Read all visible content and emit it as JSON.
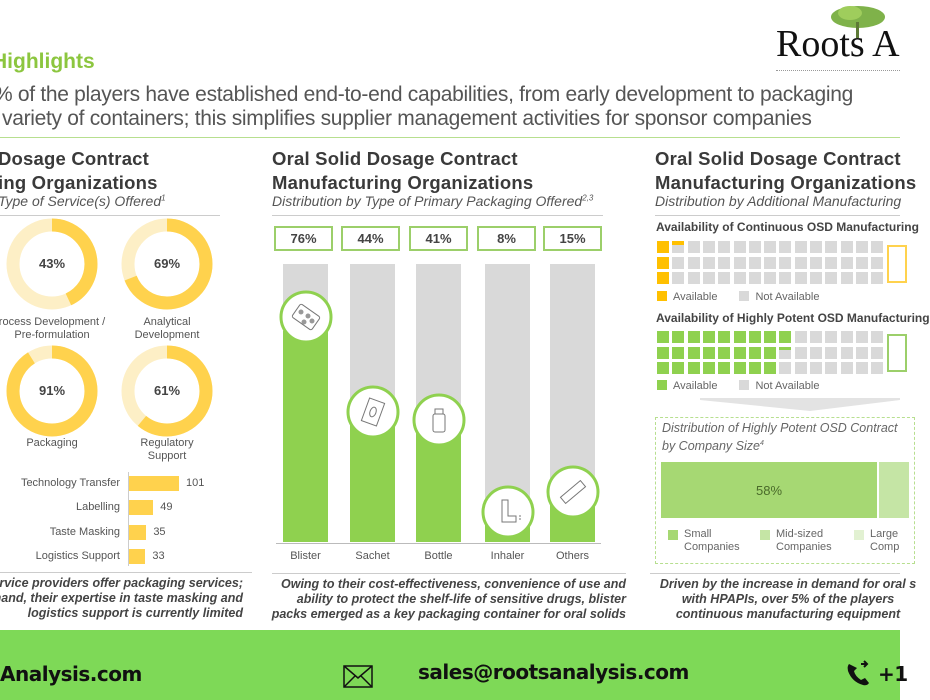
{
  "logo": {
    "text": "Roots A",
    "tree_icon": "tree-icon"
  },
  "header": {
    "title": "Highlights",
    "line1": "% of the players have established end-to-end capabilities, from early development to packaging",
    "line2": "variety of containers; this simplifies supplier management activities for sponsor companies"
  },
  "colors": {
    "green": "#8fd14f",
    "orange": "#ffc000",
    "yellow": "#ffd24d",
    "light_yellow": "#fdefc6",
    "gray": "#d9d9d9",
    "footer": "#7ed957"
  },
  "left": {
    "title1": "Dosage Contract",
    "title2": "ing Organizations",
    "subtitle": "Type of Service(s) Offered",
    "subtitle_sup": "1",
    "donuts": [
      {
        "value": 43,
        "label": "43%",
        "name1": "rocess Development /",
        "name2": "Pre-formulation"
      },
      {
        "value": 69,
        "label": "69%",
        "name1": "Analytical",
        "name2": "Development"
      },
      {
        "value": 91,
        "label": "91%",
        "name1": "Packaging",
        "name2": ""
      },
      {
        "value": 61,
        "label": "61%",
        "name1": "Regulatory",
        "name2": "Support"
      }
    ],
    "bars": [
      {
        "label": "Technology Transfer",
        "value": 101
      },
      {
        "label": "Labelling",
        "value": 49
      },
      {
        "label": "Taste Masking",
        "value": 35
      },
      {
        "label": "Logistics Support",
        "value": 33
      }
    ],
    "note1": "ervice providers offer packaging services;",
    "note2": "hand, their expertise in taste masking and",
    "note3": "logistics support is currently limited"
  },
  "middle": {
    "title1": "Oral Solid Dosage Contract",
    "title2": "Manufacturing Organizations",
    "subtitle": "Distribution by Type of Primary Packaging Offered",
    "subtitle_sup": "2,3",
    "chart_data": {
      "type": "bar",
      "categories": [
        "Blister",
        "Sachet",
        "Bottle",
        "Inhaler",
        "Others"
      ],
      "values": [
        76,
        44,
        41,
        8,
        15
      ],
      "labels": [
        "76%",
        "44%",
        "41%",
        "8%",
        "15%"
      ],
      "icons": [
        "blister-pack-icon",
        "sachet-icon",
        "bottle-icon",
        "inhaler-icon",
        "stick-pack-icon"
      ],
      "ylim": [
        0,
        100
      ]
    },
    "note1": "Owing to their cost-effectiveness, convenience of use and",
    "note2": "ability to protect the shelf-life of sensitive drugs, blister",
    "note3": "packs emerged as a key packaging container for oral solids"
  },
  "right": {
    "title1": "Oral Solid Dosage Contract",
    "title2": "Manufacturing Organizations",
    "subtitle": "Distribution by Additional Manufacturing",
    "waffle1": {
      "heading": "Availability of Continuous OSD Manufacturing",
      "filled_cells": 3.3,
      "color": "#ffc000",
      "legend_available": "Available",
      "legend_not": "Not Available"
    },
    "waffle2": {
      "heading": "Availability of Highly Potent OSD Manufacturing",
      "filled_cells": 25.3,
      "color": "#8fd14f",
      "legend_available": "Available",
      "legend_not": "Not Available"
    },
    "dist_title1": "Distribution of Highly Potent OSD Contract",
    "dist_title2": "by Company Size",
    "dist_sup": "4",
    "stack": [
      {
        "name1": "Small",
        "name2": "Companies",
        "value": 58,
        "label": "58%",
        "color": "#a6d873"
      },
      {
        "name1": "Mid-sized",
        "name2": "Companies",
        "color": "#c5e5a5"
      },
      {
        "name1": "Large",
        "name2": "Comp",
        "color": "#e2f1d2"
      }
    ],
    "note1": "Driven by the increase in demand for oral s",
    "note2": "with HPAPIs, over 5% of the players",
    "note3": "continuous manufacturing equipment"
  },
  "footer": {
    "website": "Analysis.com",
    "email": "sales@rootsanalysis.com",
    "phone": "+1"
  }
}
